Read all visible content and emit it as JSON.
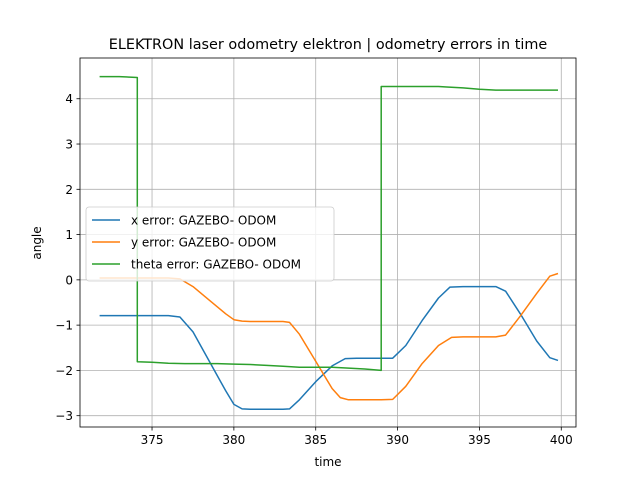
{
  "chart_data": {
    "type": "line",
    "title": "ELEKTRON laser odometry elektron | odometry errors in time",
    "xlabel": "time",
    "ylabel": "angle",
    "xlim": [
      370.6,
      400.9
    ],
    "ylim": [
      -3.25,
      4.9
    ],
    "xticks": [
      375,
      380,
      385,
      390,
      395,
      400
    ],
    "yticks": [
      -3,
      -2,
      -1,
      0,
      1,
      2,
      3,
      4
    ],
    "grid": true,
    "legend_position": "center-left",
    "series": [
      {
        "name": "x error: GAZEBO- ODOM",
        "color": "#1f77b4",
        "x": [
          371.8,
          374.0,
          376.0,
          376.7,
          377.5,
          378.5,
          379.5,
          380.0,
          380.5,
          381.0,
          382.0,
          383.0,
          383.4,
          384.0,
          385.0,
          386.0,
          386.8,
          387.5,
          389.0,
          389.7,
          390.5,
          391.5,
          392.5,
          393.2,
          394.0,
          395.0,
          396.0,
          396.6,
          397.5,
          398.5,
          399.3,
          399.8
        ],
        "y": [
          -0.79,
          -0.79,
          -0.79,
          -0.82,
          -1.15,
          -1.8,
          -2.45,
          -2.75,
          -2.85,
          -2.86,
          -2.86,
          -2.86,
          -2.85,
          -2.65,
          -2.25,
          -1.9,
          -1.74,
          -1.73,
          -1.73,
          -1.73,
          -1.45,
          -0.9,
          -0.4,
          -0.16,
          -0.15,
          -0.15,
          -0.15,
          -0.25,
          -0.75,
          -1.35,
          -1.72,
          -1.78
        ]
      },
      {
        "name": "y error: GAZEBO- ODOM",
        "color": "#ff7f0e",
        "x": [
          371.8,
          374.0,
          376.0,
          376.7,
          377.5,
          378.5,
          379.5,
          380.0,
          380.5,
          381.0,
          382.0,
          383.0,
          383.4,
          384.0,
          385.0,
          386.0,
          386.5,
          387.0,
          388.0,
          389.0,
          389.7,
          390.5,
          391.5,
          392.5,
          393.3,
          394.0,
          395.0,
          396.0,
          396.6,
          397.5,
          398.5,
          399.3,
          399.8
        ],
        "y": [
          0.04,
          0.04,
          0.04,
          0.02,
          -0.15,
          -0.45,
          -0.75,
          -0.88,
          -0.91,
          -0.92,
          -0.92,
          -0.92,
          -0.94,
          -1.2,
          -1.8,
          -2.4,
          -2.6,
          -2.65,
          -2.65,
          -2.65,
          -2.64,
          -2.35,
          -1.85,
          -1.45,
          -1.27,
          -1.26,
          -1.26,
          -1.26,
          -1.22,
          -0.8,
          -0.3,
          0.08,
          0.14
        ]
      },
      {
        "name": "theta error: GAZEBO- ODOM",
        "color": "#2ca02c",
        "x": [
          371.8,
          373.0,
          374.1,
          374.1,
          375.0,
          376.0,
          377.0,
          378.0,
          379.0,
          380.0,
          381.0,
          382.0,
          383.0,
          384.0,
          385.0,
          386.0,
          387.0,
          388.0,
          389.0,
          389.0,
          390.0,
          391.0,
          392.0,
          392.5,
          393.0,
          394.0,
          395.0,
          396.0,
          397.0,
          398.0,
          399.0,
          399.8
        ],
        "y": [
          4.49,
          4.49,
          4.47,
          -1.81,
          -1.82,
          -1.84,
          -1.85,
          -1.85,
          -1.85,
          -1.86,
          -1.87,
          -1.89,
          -1.91,
          -1.93,
          -1.93,
          -1.93,
          -1.95,
          -1.97,
          -2.0,
          4.27,
          4.27,
          4.27,
          4.27,
          4.27,
          4.26,
          4.24,
          4.21,
          4.19,
          4.19,
          4.19,
          4.19,
          4.19
        ]
      }
    ]
  }
}
